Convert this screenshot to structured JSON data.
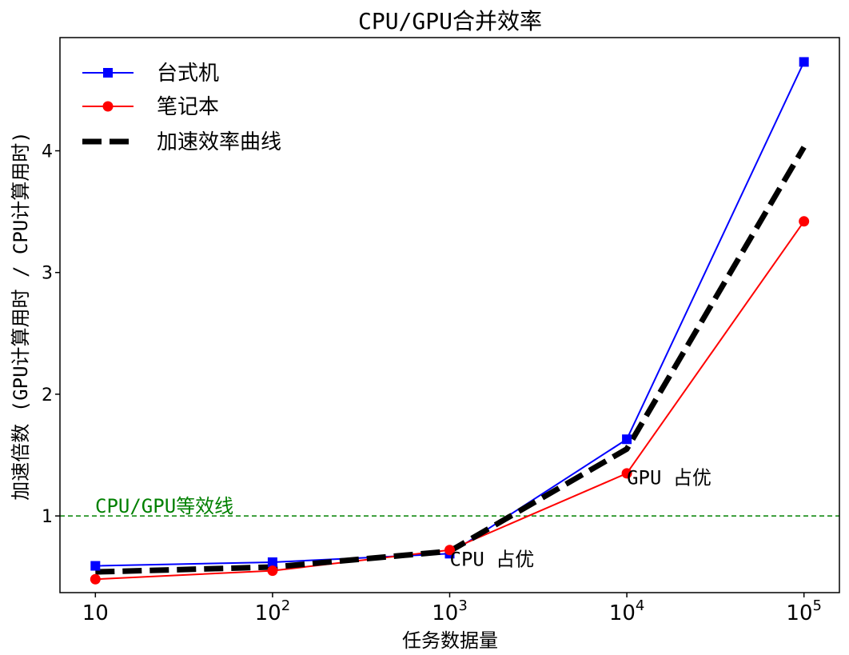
{
  "chart_data": {
    "type": "line",
    "title": "CPU/GPU合并效率",
    "xlabel": "任务数据量",
    "ylabel": "加速倍数 (GPU计算用时 / CPU计算用时)",
    "x_scale": "log",
    "x": [
      10,
      100,
      1000,
      10000,
      100000
    ],
    "xticks": [
      {
        "value": 10,
        "label": "10"
      },
      {
        "value": 100,
        "base": "10",
        "exp": "2"
      },
      {
        "value": 1000,
        "base": "10",
        "exp": "3"
      },
      {
        "value": 10000,
        "base": "10",
        "exp": "4"
      },
      {
        "value": 100000,
        "base": "10",
        "exp": "5"
      }
    ],
    "yticks": [
      1,
      2,
      3,
      4
    ],
    "xlim_log10": [
      0.8,
      5.2
    ],
    "ylim": [
      0.37,
      4.93
    ],
    "series": [
      {
        "name": "台式机",
        "color": "#0000ff",
        "marker": "square",
        "values": [
          0.59,
          0.62,
          0.69,
          1.63,
          4.73
        ]
      },
      {
        "name": "笔记本",
        "color": "#ff0000",
        "marker": "circle",
        "values": [
          0.48,
          0.55,
          0.72,
          1.35,
          3.42
        ]
      },
      {
        "name": "加速效率曲线",
        "color": "#000000",
        "style": "dashed",
        "values": [
          0.54,
          0.58,
          0.71,
          1.55,
          4.03
        ]
      }
    ],
    "reference_line": {
      "y": 1.0,
      "label": "CPU/GPU等效线",
      "color": "#008000",
      "style": "dashed"
    },
    "annotations": [
      {
        "text": "GPU 占优",
        "x": 10000,
        "y": 1.26
      },
      {
        "text": "CPU 占优",
        "x": 1000,
        "y": 0.59
      }
    ],
    "legend": "top-left",
    "grid": false
  }
}
